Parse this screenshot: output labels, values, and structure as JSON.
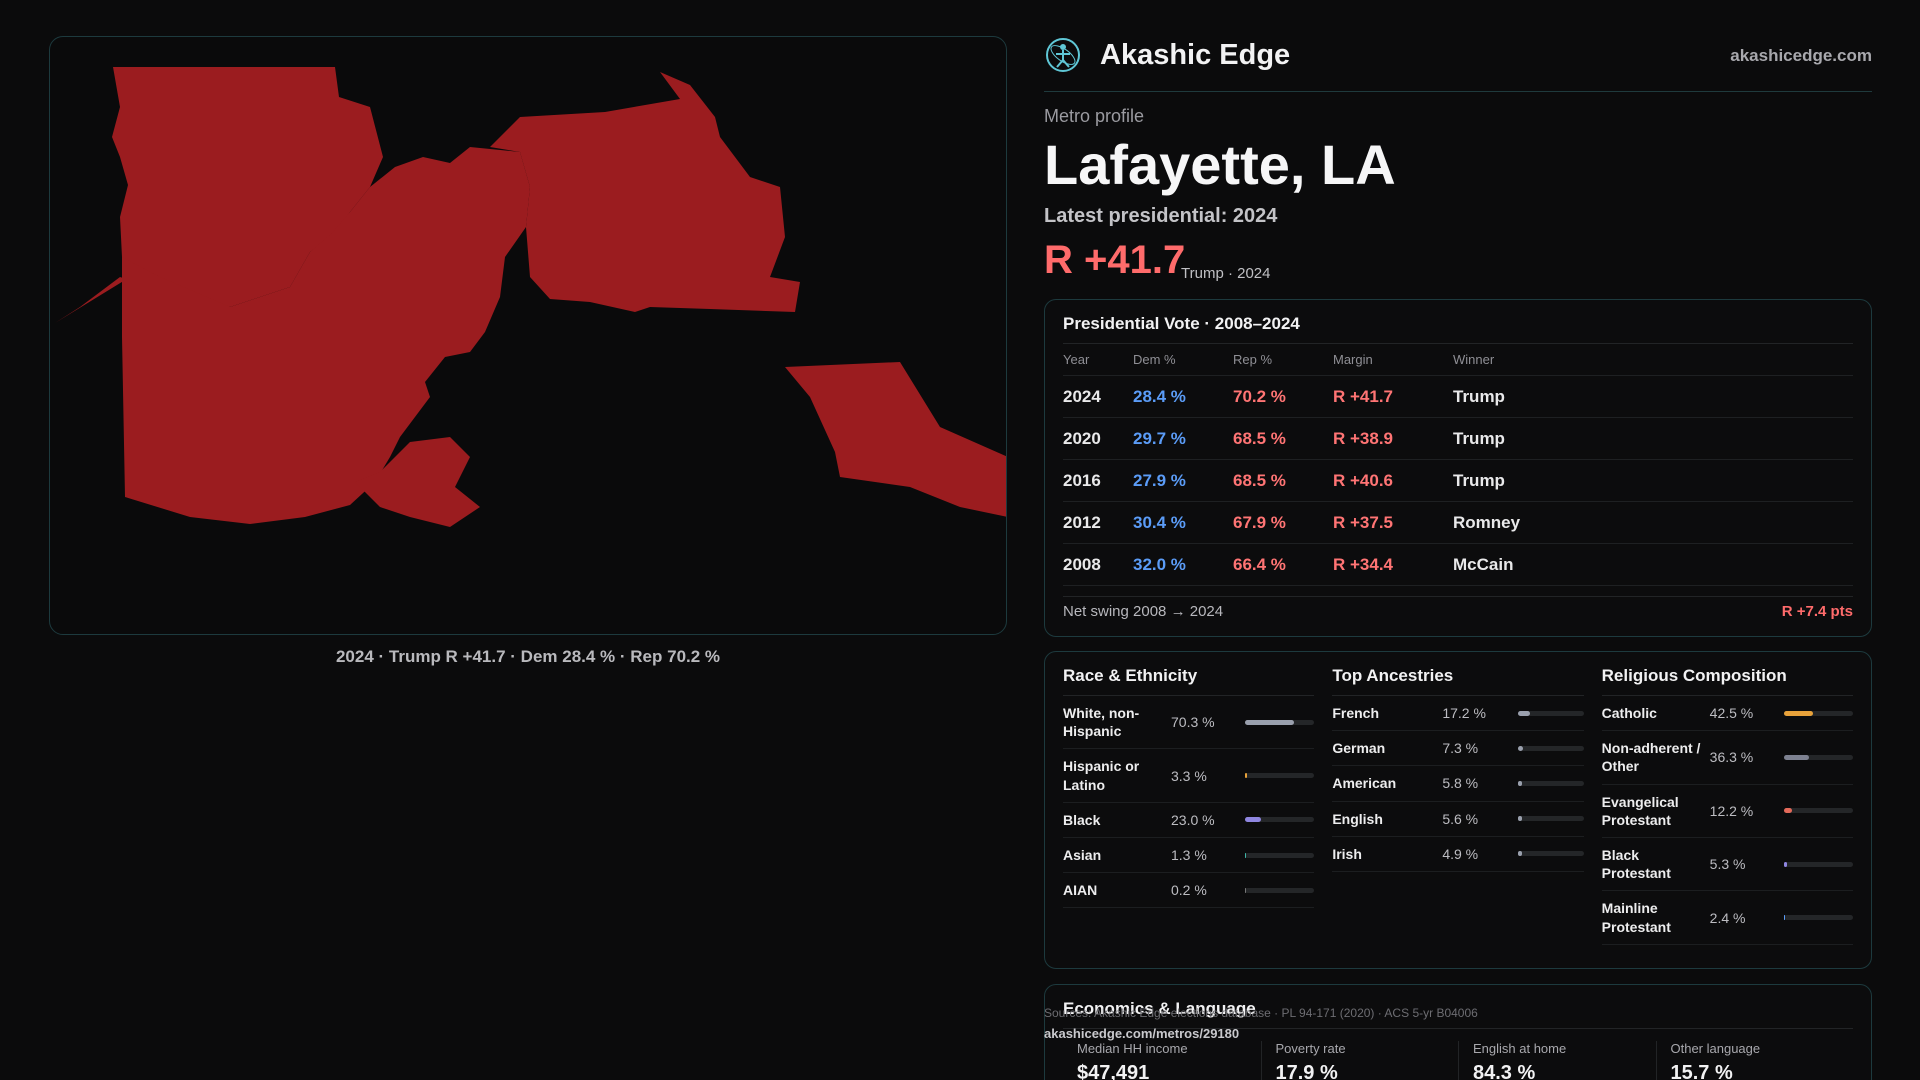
{
  "brand": {
    "name": "Akashic Edge",
    "url": "akashicedge.com",
    "logo_icon": "atom-figure-icon"
  },
  "profile": {
    "kicker": "Metro profile",
    "title": "Lafayette, LA",
    "latest_label": "Latest presidential: 2024",
    "margin": "R +41.7",
    "margin_sub": "Trump · 2024"
  },
  "map": {
    "caption": "2024 · Trump R +41.7 · Dem 28.4 % · Rep 70.2 %",
    "fill": "#9b1c1f"
  },
  "votes": {
    "title": "Presidential Vote · 2008–2024",
    "headers": [
      "Year",
      "Dem %",
      "Rep %",
      "Margin",
      "Winner"
    ],
    "rows": [
      {
        "year": "2024",
        "dem": "28.4 %",
        "rep": "70.2 %",
        "margin": "R +41.7",
        "winner": "Trump"
      },
      {
        "year": "2020",
        "dem": "29.7 %",
        "rep": "68.5 %",
        "margin": "R +38.9",
        "winner": "Trump"
      },
      {
        "year": "2016",
        "dem": "27.9 %",
        "rep": "68.5 %",
        "margin": "R +40.6",
        "winner": "Trump"
      },
      {
        "year": "2012",
        "dem": "30.4 %",
        "rep": "67.9 %",
        "margin": "R +37.5",
        "winner": "Romney"
      },
      {
        "year": "2008",
        "dem": "32.0 %",
        "rep": "66.4 %",
        "margin": "R +34.4",
        "winner": "McCain"
      }
    ],
    "swing_label": "Net swing 2008 → 2024",
    "swing_value": "R +7.4 pts"
  },
  "race": {
    "title": "Race & Ethnicity",
    "rows": [
      {
        "label": "White, non-Hispanic",
        "value": "70.3 %",
        "pct": 70.3,
        "color": "#9aa0ad"
      },
      {
        "label": "Hispanic or Latino",
        "value": "3.3 %",
        "pct": 3.3,
        "color": "#e8a23a"
      },
      {
        "label": "Black",
        "value": "23.0 %",
        "pct": 23.0,
        "color": "#8f86e0"
      },
      {
        "label": "Asian",
        "value": "1.3 %",
        "pct": 1.3,
        "color": "#3fb6a8"
      },
      {
        "label": "AIAN",
        "value": "0.2 %",
        "pct": 0.2,
        "color": "#777"
      }
    ]
  },
  "ancestry": {
    "title": "Top Ancestries",
    "rows": [
      {
        "label": "French",
        "value": "17.2 %",
        "pct": 17.2,
        "color": "#9aa0ad"
      },
      {
        "label": "German",
        "value": "7.3 %",
        "pct": 7.3,
        "color": "#9aa0ad"
      },
      {
        "label": "American",
        "value": "5.8 %",
        "pct": 5.8,
        "color": "#9aa0ad"
      },
      {
        "label": "English",
        "value": "5.6 %",
        "pct": 5.6,
        "color": "#9aa0ad"
      },
      {
        "label": "Irish",
        "value": "4.9 %",
        "pct": 4.9,
        "color": "#9aa0ad"
      }
    ]
  },
  "religion": {
    "title": "Religious Composition",
    "rows": [
      {
        "label": "Catholic",
        "value": "42.5 %",
        "pct": 42.5,
        "color": "#e8a23a"
      },
      {
        "label": "Non-adherent / Other",
        "value": "36.3 %",
        "pct": 36.3,
        "color": "#7d8190"
      },
      {
        "label": "Evangelical Protestant",
        "value": "12.2 %",
        "pct": 12.2,
        "color": "#e46a5a"
      },
      {
        "label": "Black Protestant",
        "value": "5.3 %",
        "pct": 5.3,
        "color": "#8f86e0"
      },
      {
        "label": "Mainline Protestant",
        "value": "2.4 %",
        "pct": 2.4,
        "color": "#5b9cf7"
      }
    ]
  },
  "econ": {
    "title": "Economics & Language",
    "cells": [
      {
        "label": "Median HH income",
        "value": "$47,491"
      },
      {
        "label": "Poverty rate",
        "value": "17.9 %"
      },
      {
        "label": "English at home",
        "value": "84.3 %"
      },
      {
        "label": "Other language",
        "value": "15.7 %"
      }
    ]
  },
  "footer": {
    "sources": "Sources: Akashic Edge elections database · PL 94-171 (2020) · ACS 5-yr B04006",
    "url": "akashicedge.com/metros/29180"
  }
}
